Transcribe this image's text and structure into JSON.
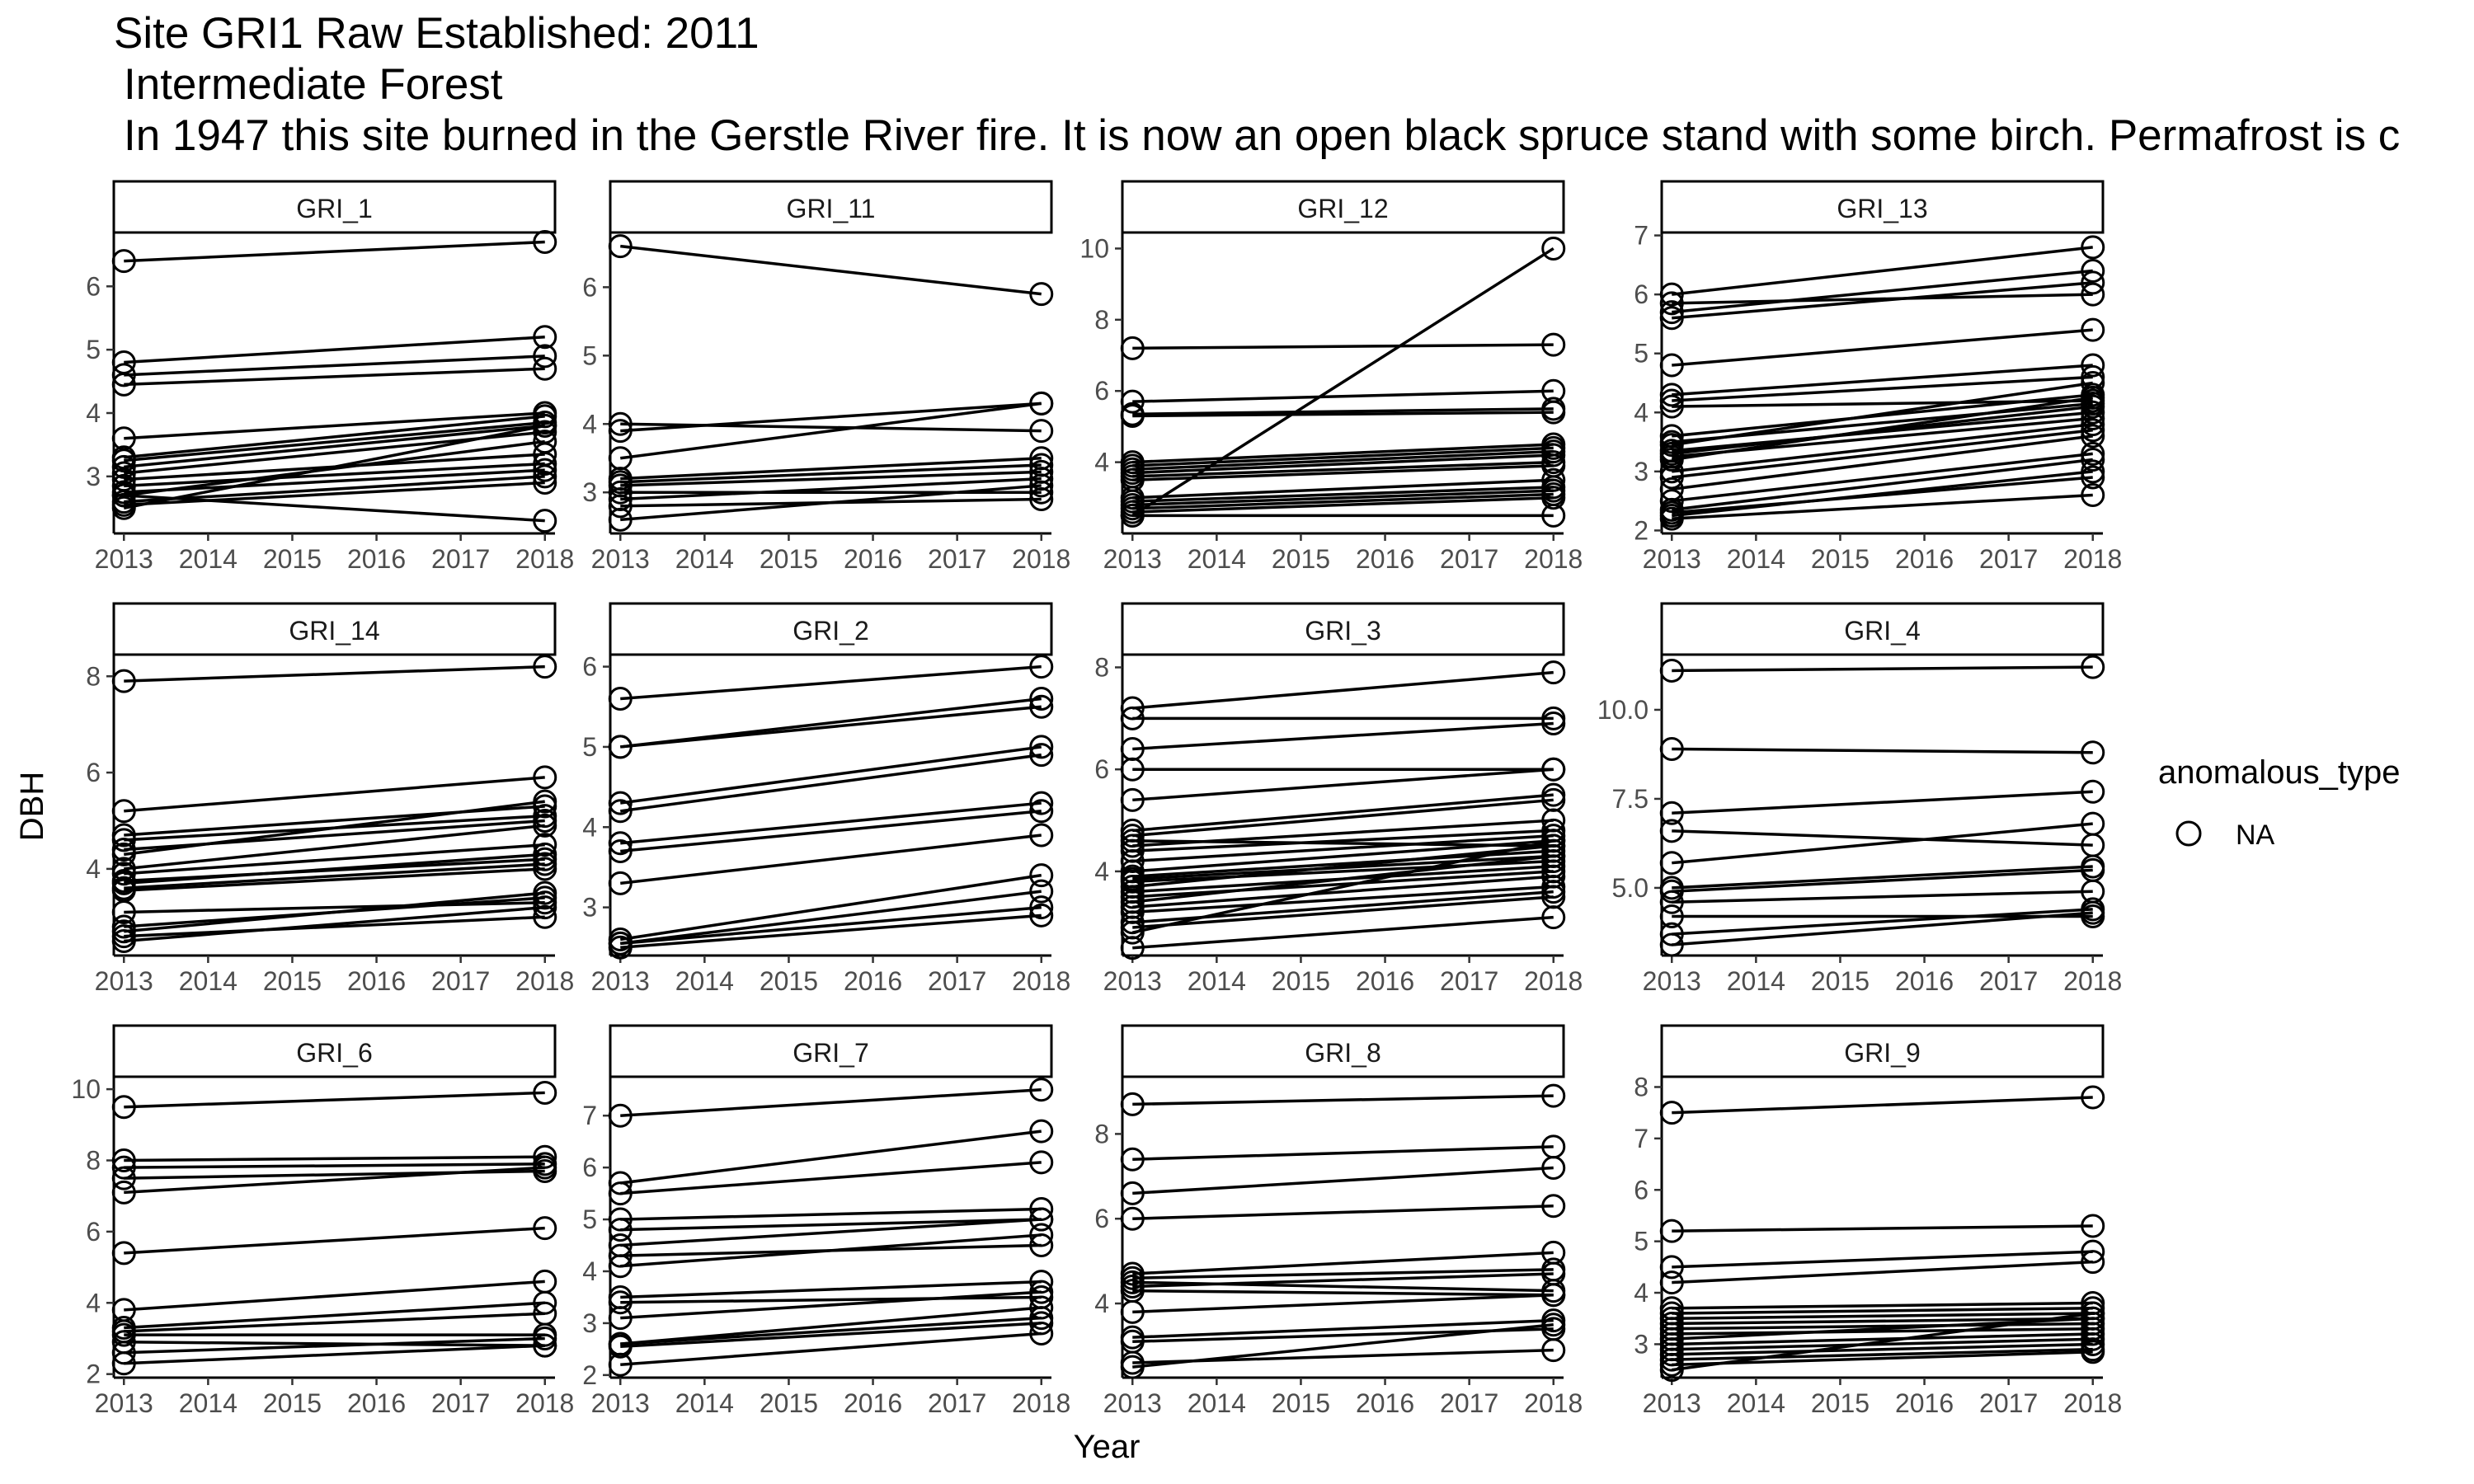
{
  "title": "Site GRI1 Raw Established: 2011",
  "subtitle_lines": [
    "Intermediate Forest",
    "In 1947 this site burned in the Gerstle River fire. It is now an open black spruce stand with some birch. Permafrost is c"
  ],
  "x_axis_label": "Year",
  "y_axis_label": "DBH",
  "legend": {
    "title": "anomalous_type",
    "entries": [
      "NA"
    ]
  },
  "colors": {
    "line": "#000000",
    "panel_border": "#000000",
    "strip_fill": "#ffffff",
    "axis_text": "#4d4d4d"
  },
  "chart_data": {
    "type": "line",
    "x_ticks": [
      2013,
      2014,
      2015,
      2016,
      2017,
      2018
    ],
    "xlim": [
      2012.88,
      2018.12
    ],
    "panels": [
      {
        "name": "GRI_1",
        "y_ticks": [
          "3",
          "4",
          "5",
          "6"
        ],
        "ylim": [
          2.1,
          6.85
        ],
        "series": [
          [
            6.4,
            6.7
          ],
          [
            4.8,
            5.2
          ],
          [
            4.6,
            4.9
          ],
          [
            4.45,
            4.7
          ],
          [
            3.6,
            4.0
          ],
          [
            3.3,
            3.95
          ],
          [
            3.25,
            3.85
          ],
          [
            3.15,
            3.8
          ],
          [
            3.05,
            3.7
          ],
          [
            2.95,
            3.35
          ],
          [
            2.85,
            3.2
          ],
          [
            2.75,
            3.1
          ],
          [
            2.7,
            3.55
          ],
          [
            2.6,
            3.0
          ],
          [
            2.55,
            2.9
          ],
          [
            2.5,
            3.8
          ],
          [
            2.7,
            2.3
          ]
        ]
      },
      {
        "name": "GRI_11",
        "y_ticks": [
          "3",
          "4",
          "5",
          "6"
        ],
        "ylim": [
          2.4,
          6.8
        ],
        "series": [
          [
            6.6,
            5.9
          ],
          [
            4.0,
            3.9
          ],
          [
            3.9,
            4.3
          ],
          [
            3.5,
            4.3
          ],
          [
            3.2,
            3.5
          ],
          [
            3.15,
            3.4
          ],
          [
            3.1,
            3.3
          ],
          [
            3.0,
            3.0
          ],
          [
            2.9,
            3.2
          ],
          [
            2.8,
            2.9
          ],
          [
            2.6,
            3.1
          ]
        ]
      },
      {
        "name": "GRI_12",
        "y_ticks": [
          "4",
          "6",
          "8",
          "10"
        ],
        "ylim": [
          2.0,
          10.45
        ],
        "series": [
          [
            7.2,
            7.3
          ],
          [
            5.7,
            6.0
          ],
          [
            5.35,
            5.5
          ],
          [
            5.3,
            5.4
          ],
          [
            4.0,
            4.5
          ],
          [
            3.9,
            4.4
          ],
          [
            3.8,
            4.3
          ],
          [
            3.7,
            4.2
          ],
          [
            3.6,
            4.0
          ],
          [
            3.5,
            3.9
          ],
          [
            3.0,
            3.5
          ],
          [
            2.9,
            3.3
          ],
          [
            2.8,
            3.2
          ],
          [
            2.7,
            3.1
          ],
          [
            2.6,
            3.0
          ],
          [
            2.5,
            2.5
          ],
          [
            2.5,
            10.0
          ]
        ]
      },
      {
        "name": "GRI_13",
        "y_ticks": [
          "2",
          "3",
          "4",
          "5",
          "6",
          "7"
        ],
        "ylim": [
          1.95,
          7.05
        ],
        "series": [
          [
            6.0,
            6.8
          ],
          [
            5.85,
            6.0
          ],
          [
            5.7,
            6.4
          ],
          [
            5.6,
            6.2
          ],
          [
            4.8,
            5.4
          ],
          [
            4.3,
            4.8
          ],
          [
            4.2,
            4.6
          ],
          [
            4.1,
            4.2
          ],
          [
            3.6,
            4.3
          ],
          [
            3.5,
            4.15
          ],
          [
            3.45,
            4.5
          ],
          [
            3.35,
            4.0
          ],
          [
            3.3,
            4.1
          ],
          [
            3.25,
            3.9
          ],
          [
            3.2,
            4.25
          ],
          [
            3.0,
            3.8
          ],
          [
            2.9,
            3.7
          ],
          [
            2.7,
            3.6
          ],
          [
            2.5,
            3.3
          ],
          [
            2.35,
            3.2
          ],
          [
            2.3,
            2.9
          ],
          [
            2.25,
            3.0
          ],
          [
            2.2,
            2.6
          ]
        ]
      },
      {
        "name": "GRI_14",
        "y_ticks": [
          "4",
          "6",
          "8"
        ],
        "ylim": [
          2.2,
          8.45
        ],
        "series": [
          [
            7.9,
            8.2
          ],
          [
            5.2,
            5.9
          ],
          [
            4.7,
            5.3
          ],
          [
            4.6,
            5.1
          ],
          [
            4.4,
            5.0
          ],
          [
            4.3,
            5.4
          ],
          [
            4.0,
            4.9
          ],
          [
            3.9,
            4.5
          ],
          [
            3.75,
            4.2
          ],
          [
            3.7,
            4.3
          ],
          [
            3.6,
            4.1
          ],
          [
            3.55,
            4.0
          ],
          [
            3.1,
            3.3
          ],
          [
            2.8,
            3.4
          ],
          [
            2.7,
            3.5
          ],
          [
            2.6,
            3.0
          ],
          [
            2.5,
            3.2
          ]
        ]
      },
      {
        "name": "GRI_2",
        "y_ticks": [
          "3",
          "4",
          "5",
          "6"
        ],
        "ylim": [
          2.4,
          6.15
        ],
        "series": [
          [
            5.6,
            6.0
          ],
          [
            5.0,
            5.6
          ],
          [
            5.0,
            5.5
          ],
          [
            4.3,
            5.0
          ],
          [
            4.2,
            4.9
          ],
          [
            3.8,
            4.3
          ],
          [
            3.7,
            4.2
          ],
          [
            3.3,
            3.9
          ],
          [
            2.6,
            3.4
          ],
          [
            2.55,
            3.2
          ],
          [
            2.55,
            3.0
          ],
          [
            2.5,
            2.9
          ]
        ]
      },
      {
        "name": "GRI_3",
        "y_ticks": [
          "4",
          "6",
          "8"
        ],
        "ylim": [
          2.35,
          8.25
        ],
        "series": [
          [
            7.2,
            7.9
          ],
          [
            7.0,
            7.0
          ],
          [
            6.4,
            6.9
          ],
          [
            6.0,
            6.0
          ],
          [
            5.4,
            6.0
          ],
          [
            4.8,
            5.5
          ],
          [
            4.7,
            5.4
          ],
          [
            4.6,
            4.5
          ],
          [
            4.5,
            5.0
          ],
          [
            4.4,
            4.8
          ],
          [
            4.2,
            4.7
          ],
          [
            4.0,
            4.6
          ],
          [
            3.9,
            4.4
          ],
          [
            3.85,
            4.3
          ],
          [
            3.8,
            4.2
          ],
          [
            3.7,
            4.5
          ],
          [
            3.6,
            4.1
          ],
          [
            3.5,
            4.0
          ],
          [
            3.4,
            4.3
          ],
          [
            3.3,
            3.9
          ],
          [
            3.2,
            3.7
          ],
          [
            3.0,
            3.6
          ],
          [
            2.9,
            3.5
          ],
          [
            2.8,
            4.6
          ],
          [
            2.5,
            3.1
          ]
        ]
      },
      {
        "name": "GRI_4",
        "y_ticks": [
          "5.0",
          "7.5",
          "10.0"
        ],
        "ylim": [
          3.1,
          11.55
        ],
        "series": [
          [
            11.1,
            11.2
          ],
          [
            8.9,
            8.8
          ],
          [
            7.1,
            7.7
          ],
          [
            6.6,
            6.2
          ],
          [
            5.7,
            6.8
          ],
          [
            5.0,
            5.6
          ],
          [
            4.9,
            5.5
          ],
          [
            4.6,
            4.9
          ],
          [
            4.2,
            4.2
          ],
          [
            3.7,
            4.4
          ],
          [
            3.4,
            4.3
          ]
        ]
      },
      {
        "name": "GRI_6",
        "y_ticks": [
          "2",
          "4",
          "6",
          "8",
          "10"
        ],
        "ylim": [
          1.9,
          10.35
        ],
        "series": [
          [
            9.5,
            9.9
          ],
          [
            8.0,
            8.1
          ],
          [
            7.8,
            7.9
          ],
          [
            7.5,
            7.7
          ],
          [
            7.1,
            7.8
          ],
          [
            5.4,
            6.1
          ],
          [
            3.8,
            4.6
          ],
          [
            3.3,
            4.0
          ],
          [
            3.2,
            3.7
          ],
          [
            3.1,
            3.1
          ],
          [
            2.9,
            2.8
          ],
          [
            2.6,
            3.0
          ],
          [
            2.3,
            2.8
          ]
        ]
      },
      {
        "name": "GRI_7",
        "y_ticks": [
          "2",
          "3",
          "4",
          "5",
          "6",
          "7"
        ],
        "ylim": [
          1.95,
          7.75
        ],
        "series": [
          [
            7.0,
            7.5
          ],
          [
            5.7,
            6.7
          ],
          [
            5.5,
            6.1
          ],
          [
            5.0,
            5.2
          ],
          [
            4.8,
            5.0
          ],
          [
            4.5,
            5.0
          ],
          [
            4.3,
            4.5
          ],
          [
            4.1,
            4.7
          ],
          [
            3.5,
            3.8
          ],
          [
            3.4,
            3.5
          ],
          [
            3.1,
            3.6
          ],
          [
            2.6,
            3.3
          ],
          [
            2.6,
            3.1
          ],
          [
            2.55,
            3.0
          ],
          [
            2.2,
            2.8
          ]
        ]
      },
      {
        "name": "GRI_8",
        "y_ticks": [
          "4",
          "6",
          "8"
        ],
        "ylim": [
          2.25,
          9.35
        ],
        "series": [
          [
            8.7,
            8.9
          ],
          [
            7.4,
            7.7
          ],
          [
            6.6,
            7.2
          ],
          [
            6.0,
            6.3
          ],
          [
            4.7,
            5.2
          ],
          [
            4.6,
            4.8
          ],
          [
            4.5,
            4.3
          ],
          [
            4.4,
            4.7
          ],
          [
            4.3,
            4.2
          ],
          [
            3.8,
            4.2
          ],
          [
            3.2,
            3.6
          ],
          [
            3.1,
            3.4
          ],
          [
            2.6,
            2.9
          ],
          [
            2.5,
            3.5
          ]
        ]
      },
      {
        "name": "GRI_9",
        "y_ticks": [
          "3",
          "4",
          "5",
          "6",
          "7",
          "8"
        ],
        "ylim": [
          2.35,
          8.2
        ],
        "series": [
          [
            7.5,
            7.8
          ],
          [
            5.2,
            5.3
          ],
          [
            4.5,
            4.8
          ],
          [
            4.2,
            4.6
          ],
          [
            3.7,
            3.8
          ],
          [
            3.6,
            3.7
          ],
          [
            3.5,
            3.6
          ],
          [
            3.4,
            3.5
          ],
          [
            3.3,
            3.4
          ],
          [
            3.2,
            3.3
          ],
          [
            3.1,
            3.5
          ],
          [
            3.0,
            3.2
          ],
          [
            2.9,
            3.1
          ],
          [
            2.8,
            3.0
          ],
          [
            2.7,
            2.9
          ],
          [
            2.6,
            2.85
          ],
          [
            2.5,
            3.6
          ]
        ]
      }
    ]
  }
}
